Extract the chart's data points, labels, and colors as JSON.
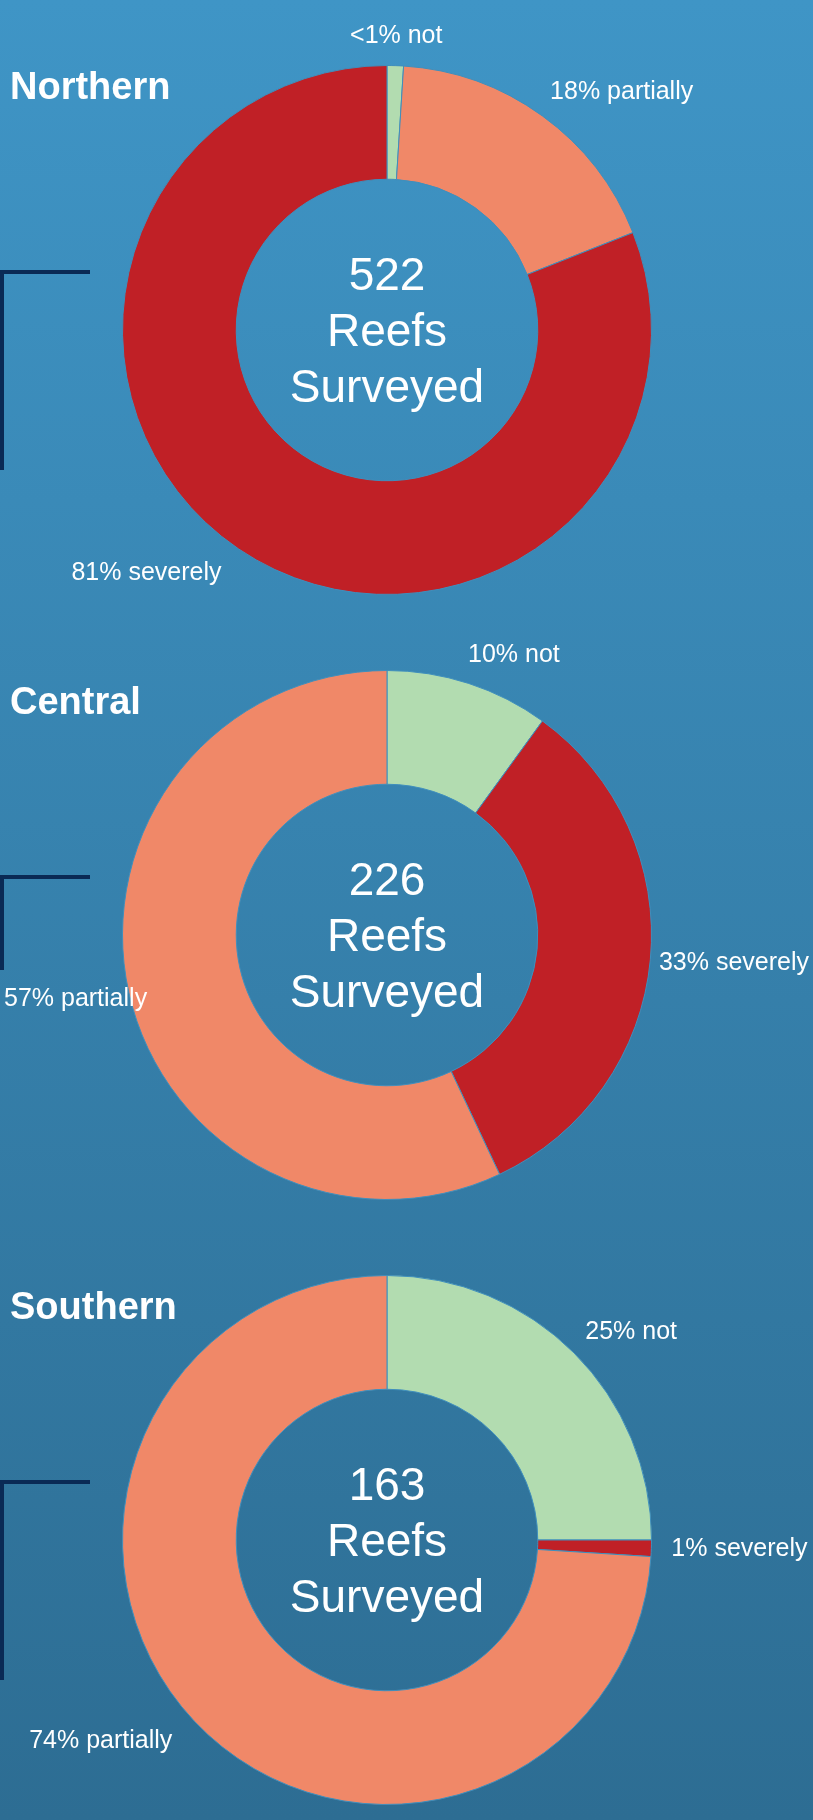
{
  "chart_data": [
    {
      "type": "donut",
      "title": "Northern",
      "categories": [
        "not",
        "partially",
        "severely"
      ],
      "values": [
        1,
        18,
        81
      ],
      "value_labels": [
        "<1%",
        "18%",
        "81%"
      ],
      "colors": [
        "#b2dcb0",
        "#f08868",
        "#c02026"
      ],
      "annotations": [
        "522",
        "Reefs",
        "Surveyed"
      ]
    },
    {
      "type": "donut",
      "title": "Central",
      "categories": [
        "not",
        "severely",
        "partially"
      ],
      "values": [
        10,
        33,
        57
      ],
      "value_labels": [
        "10%",
        "33%",
        "57%"
      ],
      "colors": [
        "#b2dcb0",
        "#c02026",
        "#f08868"
      ],
      "annotations": [
        "226",
        "Reefs",
        "Surveyed"
      ]
    },
    {
      "type": "donut",
      "title": "Southern",
      "categories": [
        "not",
        "severely",
        "partially"
      ],
      "values": [
        25,
        1,
        74
      ],
      "value_labels": [
        "25%",
        "1%",
        "74%"
      ],
      "colors": [
        "#b2dcb0",
        "#c02026",
        "#f08868"
      ],
      "annotations": [
        "163",
        "Reefs",
        "Surveyed"
      ]
    }
  ]
}
